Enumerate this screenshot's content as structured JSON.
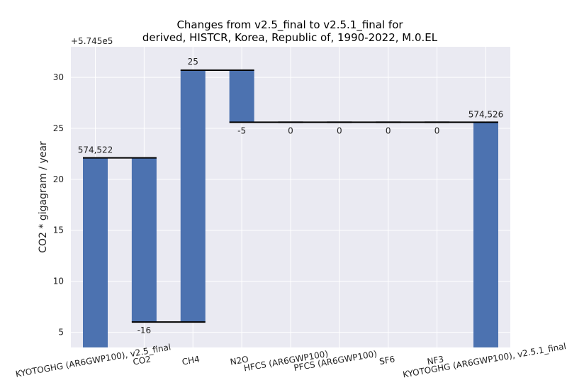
{
  "chart_data": {
    "type": "waterfall",
    "title_line1": "Changes from v2.5_final to v2.5.1_final for",
    "title_line2": "derived, HISTCR, Korea, Republic of, 1990-2022, M.0.EL",
    "ylabel": "CO2 * gigagram / year",
    "offset_label": "+5.745e5",
    "offset": 574500,
    "ylim": [
      3.5,
      33
    ],
    "yticks": [
      5,
      10,
      15,
      20,
      25,
      30
    ],
    "categories": [
      "KYOTOGHG (AR6GWP100), v2.5_final",
      "CO2",
      "CH4",
      "N2O",
      "HFCS (AR6GWP100)",
      "PFCS (AR6GWP100)",
      "SF6",
      "NF3",
      "KYOTOGHG (AR6GWP100), v2.5.1_final"
    ],
    "bars": [
      {
        "kind": "total",
        "start": 0,
        "end": 22.1,
        "label": "574,522"
      },
      {
        "kind": "delta",
        "start": 22.1,
        "end": 6.0,
        "label": "-16"
      },
      {
        "kind": "delta",
        "start": 6.0,
        "end": 30.7,
        "label": "25"
      },
      {
        "kind": "delta",
        "start": 30.7,
        "end": 25.6,
        "label": "-5"
      },
      {
        "kind": "delta",
        "start": 25.6,
        "end": 25.6,
        "label": "0"
      },
      {
        "kind": "delta",
        "start": 25.6,
        "end": 25.6,
        "label": "0"
      },
      {
        "kind": "delta",
        "start": 25.6,
        "end": 25.6,
        "label": "0"
      },
      {
        "kind": "delta",
        "start": 25.6,
        "end": 25.6,
        "label": "0"
      },
      {
        "kind": "total",
        "start": 0,
        "end": 25.6,
        "label": "574,526"
      }
    ],
    "bar_color": "#4c72b0",
    "background_color": "#eaeaf2",
    "grid": true
  }
}
